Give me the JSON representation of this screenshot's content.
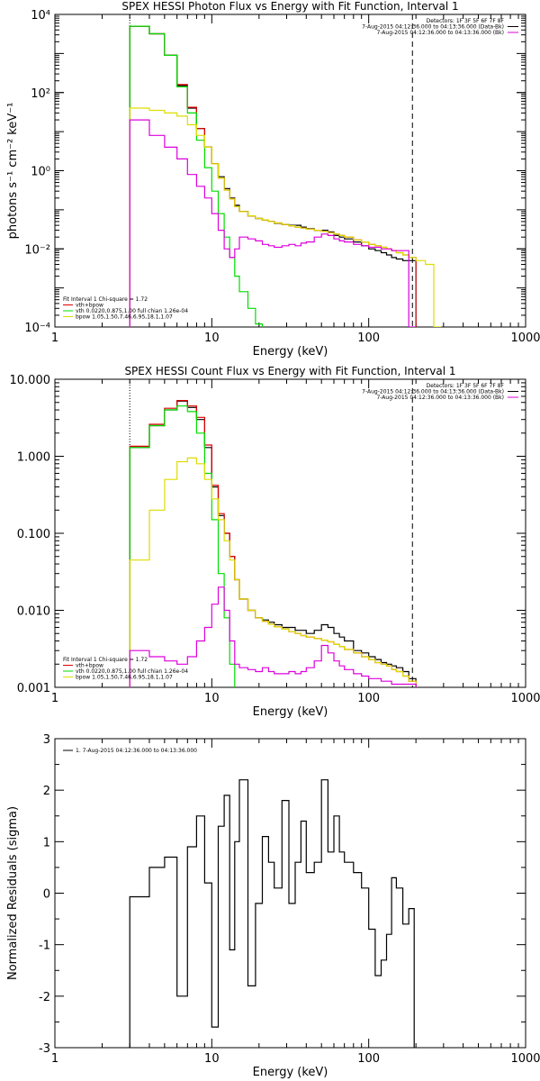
{
  "colors": {
    "data": "#000000",
    "total": "#dd0000",
    "vth": "#00dd00",
    "bpow": "#dddd00",
    "bk": "#dd00dd"
  },
  "chart_data": [
    {
      "id": "photon",
      "type": "line",
      "title": "SPEX HESSI Photon Flux vs Energy with Fit Function, Interval 1",
      "xlabel": "Energy (keV)",
      "ylabel": "photons s⁻¹ cm⁻² keV⁻¹",
      "xscale": "log",
      "yscale": "log",
      "xlim": [
        1,
        1000
      ],
      "ylim": [
        0.0001,
        10000
      ],
      "xticks": [
        1,
        10,
        100,
        1000
      ],
      "xtick_labels": [
        "1",
        "10",
        "100",
        "1000"
      ],
      "yticks": [
        0.0001,
        0.01,
        1,
        100,
        10000
      ],
      "ytick_labels": [
        "10⁻⁴",
        "10⁻²",
        "10⁰",
        "10²",
        "10⁴"
      ],
      "info_lines": [
        "Detectors: 1F 3F 5F 6F 7F 8F",
        "7-Aug-2015 04:12:36.000 to 04:13:36.000 (Data-Bk)",
        "7-Aug-2015 04:12:36.000 to 04:13:36.000 (Bk)"
      ],
      "legend_lines": [
        "Fit Interval  1    Chi-square = 1.72",
        "vth+bpow",
        "vth 0.0220,0.875,1.00  full chian 1.26e-04",
        "bpow 1.05,1.50,7.46,6.95,18.1,1.07"
      ],
      "vlines": [
        3,
        190
      ],
      "edges": [
        3,
        4,
        5,
        6,
        7,
        8,
        9,
        10,
        11,
        12,
        13,
        14,
        15,
        17,
        19,
        21,
        23,
        25,
        28,
        31,
        34,
        37,
        40,
        45,
        50,
        55,
        60,
        65,
        70,
        80,
        90,
        100,
        110,
        120,
        130,
        140,
        150,
        165,
        180,
        200,
        230,
        260,
        290
      ],
      "series": [
        {
          "name": "Data-Bk",
          "color_key": "data",
          "values": [
            5000,
            3200,
            900,
            150,
            40,
            12,
            4,
            1.5,
            0.7,
            0.35,
            0.2,
            0.13,
            0.09,
            0.07,
            0.06,
            0.055,
            0.05,
            0.045,
            0.042,
            0.04,
            0.04,
            0.036,
            0.033,
            0.03,
            0.03,
            0.027,
            0.022,
            0.02,
            0.018,
            0.015,
            0.012,
            0.01,
            0.009,
            0.008,
            0.007,
            0.006,
            0.0055,
            0.005,
            0.005
          ]
        },
        {
          "name": "vth+bpow",
          "color_key": "total",
          "values": [
            5000,
            3200,
            900,
            160,
            42,
            12,
            4,
            1.5,
            0.65,
            0.32,
            0.19,
            0.12,
            0.09,
            0.07,
            0.06,
            0.055,
            0.05,
            0.046,
            0.042,
            0.039,
            0.036,
            0.034,
            0.032,
            0.03,
            0.028,
            0.026,
            0.024,
            0.022,
            0.02,
            0.017,
            0.015,
            0.013,
            0.012,
            0.011,
            0.01,
            0.009,
            0.008,
            0.007,
            0.006
          ]
        },
        {
          "name": "vth",
          "color_key": "vth",
          "values": [
            5000,
            3200,
            900,
            140,
            30,
            6,
            1.2,
            0.3,
            0.08,
            0.02,
            0.006,
            0.002,
            0.0008,
            0.0003,
            0.00012,
            5e-05
          ]
        },
        {
          "name": "bpow",
          "color_key": "bpow",
          "values": [
            40,
            35,
            30,
            25,
            15,
            8,
            4,
            1.5,
            0.65,
            0.32,
            0.19,
            0.12,
            0.09,
            0.07,
            0.06,
            0.055,
            0.05,
            0.046,
            0.042,
            0.039,
            0.036,
            0.034,
            0.032,
            0.03,
            0.028,
            0.026,
            0.024,
            0.022,
            0.02,
            0.017,
            0.015,
            0.013,
            0.012,
            0.011,
            0.01,
            0.009,
            0.008,
            0.007,
            0.006,
            0.005,
            0.004,
            0.0001
          ]
        },
        {
          "name": "Bk",
          "color_key": "bk",
          "values": [
            20,
            8,
            4,
            2,
            0.8,
            0.4,
            0.2,
            0.08,
            0.03,
            0.01,
            0.006,
            0.01,
            0.02,
            0.018,
            0.016,
            0.013,
            0.012,
            0.011,
            0.012,
            0.013,
            0.012,
            0.014,
            0.015,
            0.02,
            0.024,
            0.022,
            0.018,
            0.016,
            0.015,
            0.013,
            0.012,
            0.011,
            0.011,
            0.01,
            0.01,
            0.009,
            0.009,
            0.009,
            0.0001
          ]
        }
      ]
    },
    {
      "id": "count",
      "type": "line",
      "title": "SPEX HESSI Count Flux vs Energy with Fit Function, Interval 1",
      "xlabel": "Energy (keV)",
      "ylabel": "",
      "xscale": "log",
      "yscale": "log",
      "xlim": [
        1,
        1000
      ],
      "ylim": [
        0.001,
        10
      ],
      "xticks": [
        1,
        10,
        100,
        1000
      ],
      "xtick_labels": [
        "1",
        "10",
        "100",
        "1000"
      ],
      "yticks": [
        0.001,
        0.01,
        0.1,
        1,
        10
      ],
      "ytick_labels": [
        "0.001",
        "0.010",
        "0.100",
        "1.000",
        "10.000"
      ],
      "info_lines": [
        "Detectors: 1F 3F 5F 6F 7F 8F",
        "7-Aug-2015 04:12:36.000 to 04:13:36.000 (Data-Bk)",
        "7-Aug-2015 04:12:36.000 to 04:13:36.000 (Bk)"
      ],
      "legend_lines": [
        "Fit Interval  1    Chi-square = 1.72",
        "vth+bpow",
        "vth 0.0220,0.875,1.00  full chian 1.26e-04",
        "bpow 1.05,1.50,7.46,6.95,18.1,1.07"
      ],
      "vlines": [
        3,
        190
      ],
      "edges": [
        3,
        4,
        5,
        6,
        7,
        8,
        9,
        10,
        11,
        12,
        13,
        14,
        15,
        17,
        19,
        21,
        23,
        25,
        28,
        31,
        34,
        37,
        40,
        45,
        50,
        55,
        60,
        65,
        70,
        80,
        90,
        100,
        110,
        120,
        130,
        140,
        150,
        165,
        180,
        200,
        230,
        260
      ],
      "series": [
        {
          "name": "Data-Bk",
          "color_key": "data",
          "values": [
            1.3,
            2.5,
            4.0,
            5.2,
            4.3,
            3.0,
            1.3,
            0.4,
            0.17,
            0.1,
            0.05,
            0.025,
            0.014,
            0.01,
            0.008,
            0.0075,
            0.007,
            0.0065,
            0.006,
            0.006,
            0.0055,
            0.0055,
            0.005,
            0.0055,
            0.0065,
            0.006,
            0.005,
            0.0045,
            0.004,
            0.003,
            0.0028,
            0.0025,
            0.0023,
            0.0021,
            0.002,
            0.0019,
            0.0018,
            0.0016,
            0.0013
          ]
        },
        {
          "name": "vth+bpow",
          "color_key": "total",
          "values": [
            1.35,
            2.6,
            4.2,
            5.3,
            4.5,
            3.2,
            1.4,
            0.42,
            0.18,
            0.1,
            0.05,
            0.025,
            0.014,
            0.01,
            0.008,
            0.0072,
            0.0066,
            0.0061,
            0.0057,
            0.0053,
            0.005,
            0.0047,
            0.0045,
            0.0043,
            0.0041,
            0.0039,
            0.0036,
            0.0034,
            0.0031,
            0.0028,
            0.0025,
            0.0023,
            0.0021,
            0.002,
            0.0019,
            0.0017,
            0.0016,
            0.0014,
            0.0012
          ]
        },
        {
          "name": "vth",
          "color_key": "vth",
          "values": [
            1.3,
            2.5,
            4.0,
            4.5,
            3.8,
            2.0,
            0.6,
            0.15,
            0.03,
            0.008,
            0.002,
            0.0008
          ]
        },
        {
          "name": "bpow",
          "color_key": "bpow",
          "values": [
            0.045,
            0.2,
            0.5,
            0.85,
            0.95,
            0.8,
            0.5,
            0.28,
            0.15,
            0.08,
            0.045,
            0.025,
            0.014,
            0.01,
            0.008,
            0.0072,
            0.0066,
            0.0061,
            0.0057,
            0.0053,
            0.005,
            0.0047,
            0.0045,
            0.0043,
            0.0041,
            0.0039,
            0.0036,
            0.0034,
            0.0031,
            0.0028,
            0.0025,
            0.0023,
            0.0021,
            0.002,
            0.0019,
            0.0017,
            0.0016,
            0.0014,
            0.0012,
            0.0009,
            0.0007
          ]
        },
        {
          "name": "Bk",
          "color_key": "bk",
          "values": [
            0.003,
            0.0025,
            0.0022,
            0.002,
            0.0025,
            0.004,
            0.006,
            0.012,
            0.02,
            0.01,
            0.004,
            0.002,
            0.0018,
            0.0017,
            0.0016,
            0.0018,
            0.0016,
            0.0015,
            0.0015,
            0.0016,
            0.0015,
            0.0016,
            0.0018,
            0.0022,
            0.0035,
            0.0028,
            0.0022,
            0.0019,
            0.0017,
            0.0015,
            0.0014,
            0.0013,
            0.0013,
            0.0012,
            0.0012,
            0.0011,
            0.0011,
            0.0011,
            0.0011
          ]
        }
      ]
    },
    {
      "id": "residuals",
      "type": "line",
      "title": "",
      "xlabel": "Energy (keV)",
      "ylabel": "Normalized Residuals (sigma)",
      "xscale": "log",
      "yscale": "linear",
      "xlim": [
        1,
        1000
      ],
      "ylim": [
        -3,
        3
      ],
      "xticks": [
        1,
        10,
        100,
        1000
      ],
      "xtick_labels": [
        "1",
        "10",
        "100",
        "1000"
      ],
      "yticks": [
        -3,
        -2,
        -1,
        0,
        1,
        2,
        3
      ],
      "ytick_labels": [
        "-3",
        "-2",
        "-1",
        "0",
        "1",
        "2",
        "3"
      ],
      "info_lines": [],
      "legend_lines": [
        "1.  7-Aug-2015 04:12:36.000 to 04:13:36.000"
      ],
      "vlines": [],
      "edges": [
        3,
        4,
        5,
        6,
        7,
        8,
        9,
        10,
        11,
        12,
        13,
        14,
        15,
        17,
        19,
        21,
        23,
        25,
        28,
        31,
        34,
        37,
        40,
        45,
        50,
        55,
        60,
        65,
        70,
        80,
        90,
        100,
        110,
        120,
        130,
        140,
        150,
        165,
        180,
        195
      ],
      "series": [
        {
          "name": "1.  7-Aug-2015 04:12:36.000 to 04:13:36.000",
          "color_key": "data",
          "values": [
            -0.07,
            0.5,
            0.7,
            -2.0,
            0.9,
            1.5,
            0.2,
            -2.6,
            1.3,
            1.9,
            -1.1,
            1.0,
            2.2,
            -1.8,
            -0.2,
            1.1,
            0.6,
            0.1,
            1.8,
            -0.2,
            0.6,
            1.4,
            0.4,
            0.6,
            2.2,
            0.8,
            1.5,
            0.8,
            0.6,
            0.4,
            0.1,
            -0.7,
            -1.6,
            -1.3,
            -0.8,
            0.3,
            0.1,
            -0.6,
            -0.3
          ]
        }
      ]
    }
  ]
}
